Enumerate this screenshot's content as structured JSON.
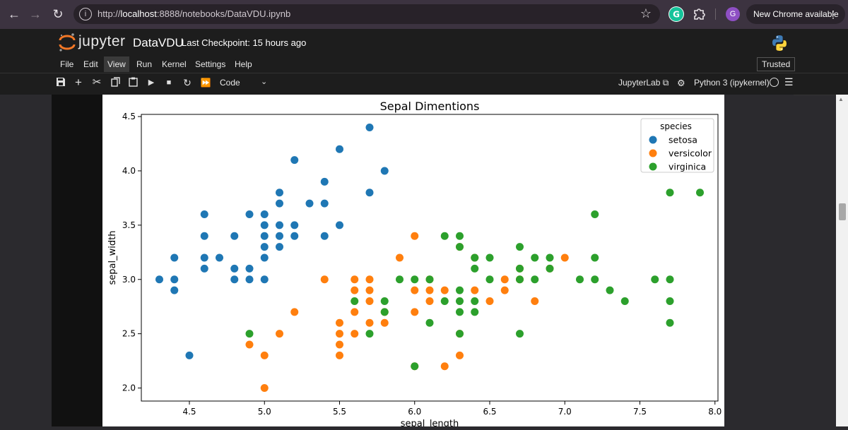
{
  "browser": {
    "url_prefix": "http://",
    "url_host": "localhost",
    "url_rest": ":8888/notebooks/DataVDU.ipynb",
    "new_chrome_label": "New Chrome available",
    "profile_initial": "G"
  },
  "jupyter": {
    "wordmark": "jupyter",
    "notebook_title": "DataVDU",
    "checkpoint": "Last Checkpoint: 15 hours ago",
    "menu": [
      "File",
      "Edit",
      "View",
      "Run",
      "Kernel",
      "Settings",
      "Help"
    ],
    "active_menu": "View",
    "trusted_label": "Trusted",
    "cell_type": "Code",
    "jupyterlab_label": "JupyterLab",
    "kernel_label": "Python 3 (ipykernel)"
  },
  "chart_data": {
    "type": "scatter",
    "title": "Sepal Dimentions",
    "xlabel": "sepal_length",
    "ylabel": "sepal_width",
    "xlim": [
      4.18,
      8.02
    ],
    "ylim": [
      1.88,
      4.52
    ],
    "xticks": [
      "4.5",
      "5.0",
      "5.5",
      "6.0",
      "6.5",
      "7.0",
      "7.5",
      "8.0"
    ],
    "yticks": [
      "2.0",
      "2.5",
      "3.0",
      "3.5",
      "4.0",
      "4.5"
    ],
    "grid": false,
    "legend": {
      "title": "species",
      "placement": "top-right"
    },
    "series": [
      {
        "name": "setosa",
        "color": "#1f77b4",
        "points": [
          [
            4.3,
            3.0
          ],
          [
            4.4,
            2.9
          ],
          [
            4.4,
            3.0
          ],
          [
            4.4,
            3.2
          ],
          [
            4.5,
            2.3
          ],
          [
            4.6,
            3.1
          ],
          [
            4.6,
            3.2
          ],
          [
            4.6,
            3.4
          ],
          [
            4.6,
            3.6
          ],
          [
            4.7,
            3.2
          ],
          [
            4.8,
            3.0
          ],
          [
            4.8,
            3.1
          ],
          [
            4.8,
            3.4
          ],
          [
            4.9,
            3.0
          ],
          [
            4.9,
            3.1
          ],
          [
            4.9,
            3.6
          ],
          [
            5.0,
            3.0
          ],
          [
            5.0,
            3.2
          ],
          [
            5.0,
            3.3
          ],
          [
            5.0,
            3.4
          ],
          [
            5.0,
            3.5
          ],
          [
            5.0,
            3.6
          ],
          [
            5.1,
            3.3
          ],
          [
            5.1,
            3.4
          ],
          [
            5.1,
            3.5
          ],
          [
            5.1,
            3.7
          ],
          [
            5.1,
            3.8
          ],
          [
            5.2,
            3.4
          ],
          [
            5.2,
            3.5
          ],
          [
            5.2,
            4.1
          ],
          [
            5.3,
            3.7
          ],
          [
            5.4,
            3.4
          ],
          [
            5.4,
            3.7
          ],
          [
            5.4,
            3.9
          ],
          [
            5.5,
            3.5
          ],
          [
            5.5,
            4.2
          ],
          [
            5.7,
            3.8
          ],
          [
            5.7,
            4.4
          ],
          [
            5.8,
            4.0
          ]
        ]
      },
      {
        "name": "versicolor",
        "color": "#ff7f0e",
        "points": [
          [
            4.9,
            2.4
          ],
          [
            5.0,
            2.0
          ],
          [
            5.0,
            2.3
          ],
          [
            5.1,
            2.5
          ],
          [
            5.2,
            2.7
          ],
          [
            5.4,
            3.0
          ],
          [
            5.5,
            2.3
          ],
          [
            5.5,
            2.4
          ],
          [
            5.5,
            2.5
          ],
          [
            5.5,
            2.6
          ],
          [
            5.6,
            2.5
          ],
          [
            5.6,
            2.7
          ],
          [
            5.6,
            2.9
          ],
          [
            5.6,
            3.0
          ],
          [
            5.7,
            2.6
          ],
          [
            5.7,
            2.8
          ],
          [
            5.7,
            2.9
          ],
          [
            5.7,
            3.0
          ],
          [
            5.8,
            2.6
          ],
          [
            5.8,
            2.7
          ],
          [
            5.9,
            3.2
          ],
          [
            6.0,
            2.2
          ],
          [
            6.0,
            2.7
          ],
          [
            6.0,
            2.9
          ],
          [
            6.0,
            3.4
          ],
          [
            6.1,
            2.8
          ],
          [
            6.1,
            2.9
          ],
          [
            6.1,
            3.0
          ],
          [
            6.2,
            2.2
          ],
          [
            6.2,
            2.9
          ],
          [
            6.3,
            2.3
          ],
          [
            6.3,
            2.5
          ],
          [
            6.3,
            3.3
          ],
          [
            6.4,
            2.9
          ],
          [
            6.4,
            3.2
          ],
          [
            6.5,
            2.8
          ],
          [
            6.6,
            2.9
          ],
          [
            6.6,
            3.0
          ],
          [
            6.7,
            3.0
          ],
          [
            6.7,
            3.1
          ],
          [
            6.8,
            2.8
          ],
          [
            6.9,
            3.1
          ],
          [
            7.0,
            3.2
          ]
        ]
      },
      {
        "name": "virginica",
        "color": "#2ca02c",
        "points": [
          [
            4.9,
            2.5
          ],
          [
            5.6,
            2.8
          ],
          [
            5.7,
            2.5
          ],
          [
            5.8,
            2.7
          ],
          [
            5.8,
            2.8
          ],
          [
            5.9,
            3.0
          ],
          [
            6.0,
            2.2
          ],
          [
            6.0,
            3.0
          ],
          [
            6.1,
            2.6
          ],
          [
            6.1,
            3.0
          ],
          [
            6.2,
            2.8
          ],
          [
            6.2,
            3.4
          ],
          [
            6.3,
            2.5
          ],
          [
            6.3,
            2.7
          ],
          [
            6.3,
            2.8
          ],
          [
            6.3,
            2.9
          ],
          [
            6.3,
            3.3
          ],
          [
            6.3,
            3.4
          ],
          [
            6.4,
            2.7
          ],
          [
            6.4,
            2.8
          ],
          [
            6.4,
            3.1
          ],
          [
            6.4,
            3.2
          ],
          [
            6.5,
            3.0
          ],
          [
            6.5,
            3.2
          ],
          [
            6.7,
            2.5
          ],
          [
            6.7,
            3.0
          ],
          [
            6.7,
            3.1
          ],
          [
            6.7,
            3.3
          ],
          [
            6.8,
            3.0
          ],
          [
            6.8,
            3.2
          ],
          [
            6.9,
            3.1
          ],
          [
            6.9,
            3.2
          ],
          [
            7.1,
            3.0
          ],
          [
            7.2,
            3.0
          ],
          [
            7.2,
            3.2
          ],
          [
            7.2,
            3.6
          ],
          [
            7.3,
            2.9
          ],
          [
            7.4,
            2.8
          ],
          [
            7.6,
            3.0
          ],
          [
            7.7,
            2.6
          ],
          [
            7.7,
            2.8
          ],
          [
            7.7,
            3.0
          ],
          [
            7.7,
            3.8
          ],
          [
            7.9,
            3.8
          ]
        ]
      }
    ]
  }
}
